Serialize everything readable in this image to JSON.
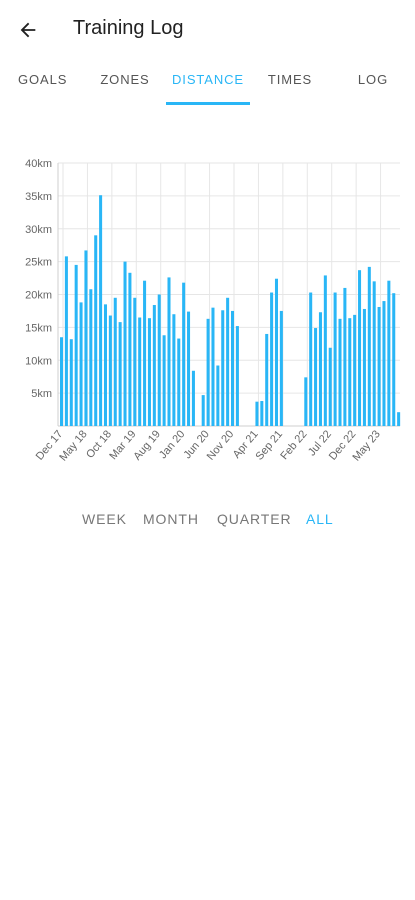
{
  "header": {
    "title": "Training Log",
    "back_icon": "arrow-left-icon"
  },
  "tabs": [
    {
      "label": "GOALS",
      "active": false
    },
    {
      "label": "ZONES",
      "active": false
    },
    {
      "label": "DISTANCE",
      "active": true
    },
    {
      "label": "TIMES",
      "active": false
    },
    {
      "label": "LOG",
      "active": false
    }
  ],
  "ranges": [
    {
      "label": "WEEK",
      "active": false
    },
    {
      "label": "MONTH",
      "active": false
    },
    {
      "label": "QUARTER",
      "active": false
    },
    {
      "label": "ALL",
      "active": true
    }
  ],
  "colors": {
    "accent": "#29b6f6",
    "bar": "#29b6f6",
    "grid": "#e6e6e6"
  },
  "chart_data": {
    "type": "bar",
    "ylim": [
      0,
      40
    ],
    "yticks": [
      "5km",
      "10km",
      "15km",
      "20km",
      "25km",
      "30km",
      "35km",
      "40km"
    ],
    "ytick_values": [
      5,
      10,
      15,
      20,
      25,
      30,
      35,
      40
    ],
    "xticks": [
      "Dec 17",
      "May 18",
      "Oct 18",
      "Mar 19",
      "Aug 19",
      "Jan 20",
      "Jun 20",
      "Nov 20",
      "Apr 21",
      "Sep 21",
      "Feb 22",
      "Jul 22",
      "Dec 22",
      "May 23"
    ],
    "grid": true,
    "values": [
      13.5,
      25.8,
      13.2,
      24.5,
      18.8,
      26.7,
      20.8,
      29,
      35.1,
      18.5,
      16.8,
      19.5,
      15.8,
      25,
      23.3,
      19.5,
      16.5,
      22.1,
      16.4,
      18.4,
      20,
      13.8,
      22.6,
      17,
      13.3,
      21.8,
      17.4,
      8.4,
      0,
      4.7,
      16.3,
      18,
      9.2,
      17.6,
      19.5,
      17.5,
      15.2,
      0,
      0,
      0,
      3.7,
      3.8,
      14,
      20.3,
      22.4,
      17.5,
      0,
      0,
      0,
      0,
      7.4,
      20.3,
      14.9,
      17.3,
      22.9,
      11.9,
      20.3,
      16.3,
      21,
      16.4,
      16.9,
      23.7,
      17.8,
      24.2,
      22,
      18.1,
      19,
      22.1,
      20.2,
      2.1
    ]
  }
}
